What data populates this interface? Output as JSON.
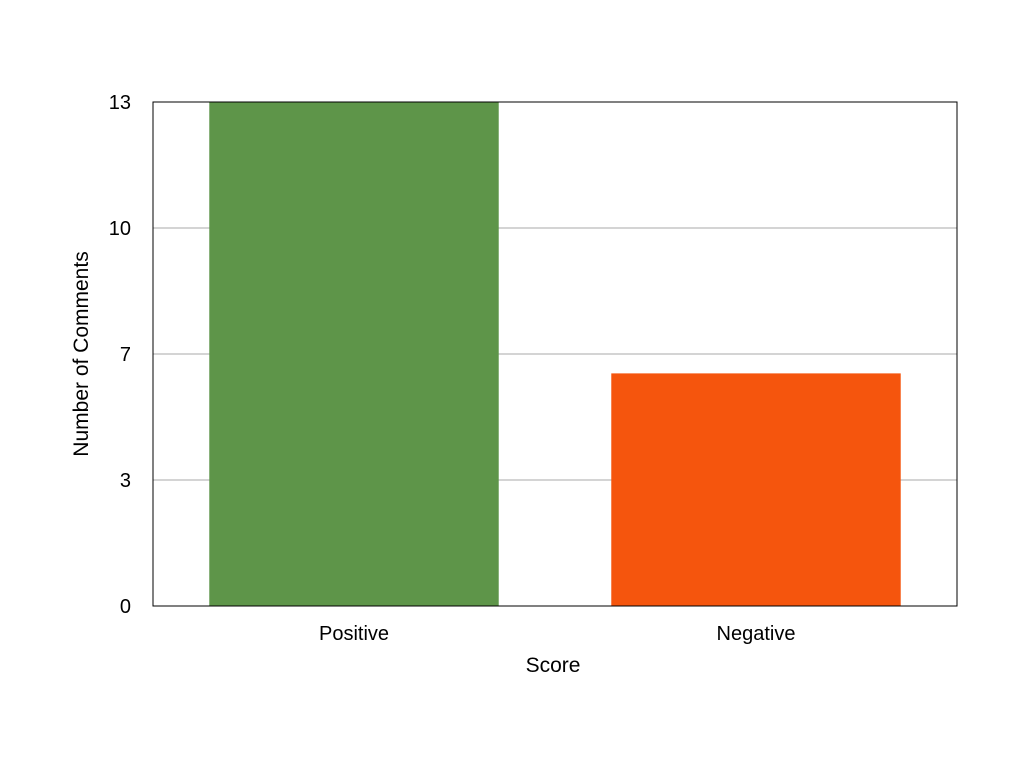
{
  "chart_data": {
    "type": "bar",
    "categories": [
      "Positive",
      "Negative"
    ],
    "values": [
      13,
      6
    ],
    "colors": [
      "#5E9549",
      "#F5550D"
    ],
    "title": "",
    "xlabel": "Score",
    "ylabel": "Number of Comments",
    "ylim": [
      0,
      13
    ],
    "yticks": [
      {
        "value": 0,
        "label": "0"
      },
      {
        "value": 3.25,
        "label": "3"
      },
      {
        "value": 6.5,
        "label": "7"
      },
      {
        "value": 9.75,
        "label": "10"
      },
      {
        "value": 13,
        "label": "13"
      }
    ],
    "grid": true,
    "grid_color": "#AAAAAA",
    "legend": "none"
  }
}
